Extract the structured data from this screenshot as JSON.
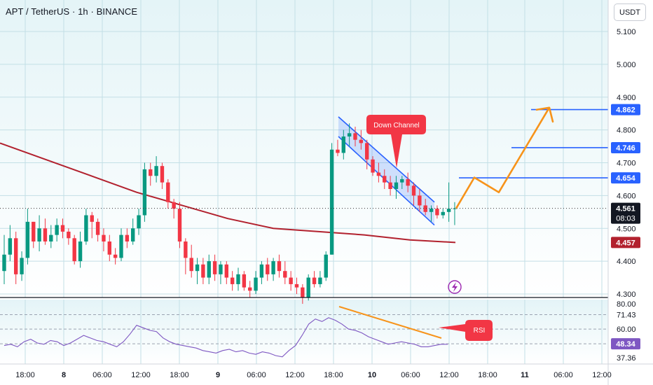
{
  "header": {
    "title": "APT / TetherUS · 1h · BINANCE",
    "currency": "USDT"
  },
  "colors": {
    "up": "#089981",
    "down": "#f23645",
    "ma": "#b2212e",
    "channel": "#2962ff",
    "projection": "#f7931a",
    "rsi_line": "#7e57c2",
    "rsi_div": "#f7931a",
    "bg_top": "#e4f4f7",
    "bg_bottom": "#ffffff",
    "grid": "#c3dfe6"
  },
  "icons": {
    "alert": "lightning-icon"
  },
  "chart_data": {
    "type": "candlestick",
    "price_axis": {
      "ticks": [
        "5.100",
        "5.000",
        "4.900",
        "4.800",
        "4.700",
        "4.600",
        "4.500",
        "4.400",
        "4.300"
      ],
      "range": [
        4.28,
        5.15
      ]
    },
    "time_axis": {
      "labels": [
        "18:00",
        "8",
        "06:00",
        "12:00",
        "18:00",
        "9",
        "06:00",
        "12:00",
        "18:00",
        "10",
        "06:00",
        "12:00",
        "18:00",
        "11",
        "06:00",
        "12:00"
      ]
    },
    "candles": [
      [
        4.37,
        4.48,
        4.33,
        4.42
      ],
      [
        4.42,
        4.51,
        4.4,
        4.47
      ],
      [
        4.47,
        4.49,
        4.33,
        4.36
      ],
      [
        4.36,
        4.43,
        4.34,
        4.41
      ],
      [
        4.41,
        4.56,
        4.39,
        4.52
      ],
      [
        4.52,
        4.52,
        4.44,
        4.46
      ],
      [
        4.46,
        4.54,
        4.43,
        4.5
      ],
      [
        4.5,
        4.53,
        4.45,
        4.46
      ],
      [
        4.46,
        4.51,
        4.44,
        4.48
      ],
      [
        4.48,
        4.53,
        4.46,
        4.51
      ],
      [
        4.51,
        4.53,
        4.47,
        4.49
      ],
      [
        4.49,
        4.5,
        4.45,
        4.47
      ],
      [
        4.47,
        4.48,
        4.39,
        4.4
      ],
      [
        4.4,
        4.49,
        4.38,
        4.46
      ],
      [
        4.46,
        4.56,
        4.45,
        4.54
      ],
      [
        4.54,
        4.55,
        4.47,
        4.52
      ],
      [
        4.52,
        4.53,
        4.46,
        4.48
      ],
      [
        4.48,
        4.5,
        4.43,
        4.46
      ],
      [
        4.46,
        4.48,
        4.4,
        4.42
      ],
      [
        4.42,
        4.44,
        4.39,
        4.41
      ],
      [
        4.41,
        4.5,
        4.4,
        4.48
      ],
      [
        4.48,
        4.5,
        4.44,
        4.46
      ],
      [
        4.46,
        4.53,
        4.45,
        4.5
      ],
      [
        4.5,
        4.56,
        4.48,
        4.54
      ],
      [
        4.54,
        4.7,
        4.52,
        4.68
      ],
      [
        4.68,
        4.7,
        4.63,
        4.66
      ],
      [
        4.66,
        4.72,
        4.64,
        4.69
      ],
      [
        4.69,
        4.7,
        4.62,
        4.64
      ],
      [
        4.64,
        4.65,
        4.56,
        4.58
      ],
      [
        4.58,
        4.59,
        4.53,
        4.56
      ],
      [
        4.56,
        4.58,
        4.44,
        4.46
      ],
      [
        4.46,
        4.47,
        4.36,
        4.41
      ],
      [
        4.41,
        4.45,
        4.35,
        4.37
      ],
      [
        4.37,
        4.41,
        4.33,
        4.39
      ],
      [
        4.39,
        4.41,
        4.33,
        4.35
      ],
      [
        4.35,
        4.42,
        4.33,
        4.4
      ],
      [
        4.4,
        4.42,
        4.34,
        4.36
      ],
      [
        4.36,
        4.4,
        4.33,
        4.39
      ],
      [
        4.39,
        4.4,
        4.33,
        4.35
      ],
      [
        4.35,
        4.37,
        4.31,
        4.33
      ],
      [
        4.33,
        4.38,
        4.31,
        4.36
      ],
      [
        4.36,
        4.37,
        4.31,
        4.32
      ],
      [
        4.32,
        4.34,
        4.29,
        4.31
      ],
      [
        4.31,
        4.37,
        4.3,
        4.35
      ],
      [
        4.35,
        4.4,
        4.33,
        4.39
      ],
      [
        4.39,
        4.41,
        4.34,
        4.36
      ],
      [
        4.36,
        4.41,
        4.34,
        4.4
      ],
      [
        4.4,
        4.42,
        4.35,
        4.37
      ],
      [
        4.37,
        4.4,
        4.33,
        4.35
      ],
      [
        4.35,
        4.37,
        4.31,
        4.33
      ],
      [
        4.33,
        4.35,
        4.3,
        4.32
      ],
      [
        4.32,
        4.33,
        4.27,
        4.29
      ],
      [
        4.29,
        4.36,
        4.28,
        4.35
      ],
      [
        4.35,
        4.37,
        4.32,
        4.33
      ],
      [
        4.33,
        4.37,
        4.32,
        4.35
      ],
      [
        4.35,
        4.43,
        4.34,
        4.42
      ],
      [
        4.42,
        4.76,
        4.42,
        4.74
      ],
      [
        4.74,
        4.77,
        4.72,
        4.73
      ],
      [
        4.73,
        4.8,
        4.71,
        4.78
      ],
      [
        4.78,
        4.82,
        4.75,
        4.79
      ],
      [
        4.79,
        4.81,
        4.75,
        4.77
      ],
      [
        4.77,
        4.8,
        4.74,
        4.76
      ],
      [
        4.76,
        4.77,
        4.68,
        4.71
      ],
      [
        4.71,
        4.72,
        4.66,
        4.67
      ],
      [
        4.67,
        4.7,
        4.64,
        4.66
      ],
      [
        4.66,
        4.68,
        4.62,
        4.64
      ],
      [
        4.64,
        4.66,
        4.6,
        4.62
      ],
      [
        4.62,
        4.66,
        4.59,
        4.64
      ],
      [
        4.64,
        4.66,
        4.62,
        4.65
      ],
      [
        4.65,
        4.67,
        4.61,
        4.63
      ],
      [
        4.63,
        4.64,
        4.57,
        4.6
      ],
      [
        4.6,
        4.62,
        4.55,
        4.57
      ],
      [
        4.57,
        4.59,
        4.54,
        4.55
      ],
      [
        4.55,
        4.57,
        4.52,
        4.56
      ],
      [
        4.56,
        4.57,
        4.53,
        4.54
      ],
      [
        4.54,
        4.56,
        4.53,
        4.55
      ],
      [
        4.55,
        4.64,
        4.52,
        4.56
      ],
      [
        4.56,
        4.58,
        4.51,
        4.561
      ]
    ],
    "moving_average": [
      4.76,
      4.71,
      4.66,
      4.61,
      4.57,
      4.53,
      4.5,
      4.49,
      4.48,
      4.465,
      4.457
    ],
    "down_channel": {
      "upper": [
        [
          4.84,
          0
        ],
        [
          4.58,
          1
        ]
      ],
      "lower": [
        [
          4.78,
          0
        ],
        [
          4.51,
          1
        ]
      ]
    },
    "projection": [
      4.561,
      4.655,
      4.61,
      4.868
    ],
    "levels": [
      {
        "price": 4.862,
        "label": "4.862"
      },
      {
        "price": 4.746,
        "label": "4.746"
      },
      {
        "price": 4.654,
        "label": "4.654"
      }
    ],
    "current_price": {
      "label": "4.561",
      "countdown": "08:03"
    },
    "ma_value": "4.457",
    "annotations": {
      "channel": "Down Channel",
      "rsi": "RSI"
    },
    "rsi": {
      "ticks": [
        "80.00",
        "60.00",
        "37.36"
      ],
      "levels": [
        "71.43"
      ],
      "value": "48.34",
      "range": [
        35,
        82
      ],
      "values": [
        47,
        48,
        46,
        50,
        52,
        49,
        48,
        51,
        50,
        47,
        49,
        52,
        55,
        53,
        51,
        50,
        48,
        46,
        50,
        56,
        63,
        61,
        59,
        58,
        53,
        50,
        48,
        47,
        46,
        45,
        43,
        42,
        41,
        43,
        44,
        42,
        43,
        41,
        40,
        42,
        41,
        39,
        38,
        43,
        47,
        55,
        64,
        68,
        66,
        69,
        67,
        64,
        60,
        59,
        57,
        54,
        52,
        50,
        48,
        49,
        50,
        49,
        48,
        46,
        46,
        47,
        48,
        48
      ]
    }
  }
}
